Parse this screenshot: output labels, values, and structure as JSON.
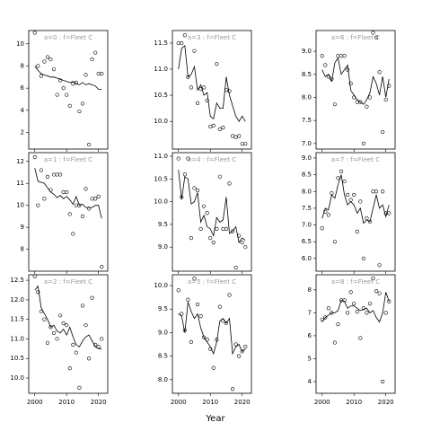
{
  "xlabel": "Year",
  "chart_data": [
    {
      "type": "scatter",
      "title": "a=0 : f=Fleet C",
      "x": [
        2000,
        2001,
        2002,
        2003,
        2004,
        2005,
        2006,
        2007,
        2008,
        2009,
        2010,
        2011,
        2012,
        2013,
        2014,
        2015,
        2016,
        2017,
        2018,
        2019,
        2020,
        2021
      ],
      "values": [
        11.0,
        8.0,
        7.1,
        8.4,
        8.8,
        8.6,
        7.7,
        5.4,
        6.7,
        6.0,
        5.4,
        4.4,
        6.4,
        6.5,
        3.9,
        4.6,
        7.2,
        0.9,
        8.6,
        9.2,
        7.3,
        7.3
      ],
      "line_values": [
        8.0,
        7.6,
        7.3,
        7.2,
        7.1,
        7.0,
        7.0,
        6.9,
        6.8,
        6.7,
        6.6,
        6.5,
        6.6,
        6.4,
        6.3,
        6.5,
        6.3,
        6.4,
        6.3,
        6.2,
        5.9,
        5.9
      ],
      "xlim": [
        1998.1,
        2022.9
      ],
      "xticks": [
        2000,
        2010,
        2020
      ],
      "ylim": [
        0.5,
        11.2
      ],
      "yticks": [
        2,
        4,
        6,
        8,
        10
      ]
    },
    {
      "type": "scatter",
      "title": "a=1 : f=Fleet C",
      "x": [
        2000,
        2001,
        2002,
        2003,
        2004,
        2005,
        2006,
        2007,
        2008,
        2009,
        2010,
        2011,
        2012,
        2013,
        2014,
        2015,
        2016,
        2017,
        2018,
        2019,
        2020,
        2021
      ],
      "values": [
        12.2,
        10.0,
        11.6,
        10.3,
        11.3,
        10.7,
        11.4,
        11.4,
        11.4,
        10.6,
        10.6,
        9.6,
        8.7,
        10.0,
        10.0,
        9.5,
        10.75,
        9.85,
        10.3,
        10.3,
        10.4,
        7.2
      ],
      "line_values": [
        11.7,
        11.1,
        11.05,
        11.0,
        10.8,
        10.6,
        10.5,
        10.35,
        10.45,
        10.3,
        10.4,
        10.25,
        10.05,
        10.4,
        10.0,
        10.05,
        9.9,
        9.9,
        9.9,
        10.0,
        10.0,
        9.4
      ],
      "xlim": [
        1998.1,
        2022.9
      ],
      "xticks": [
        2000,
        2010,
        2020
      ],
      "ylim": [
        7.0,
        12.4
      ],
      "yticks": [
        8,
        9,
        10,
        11,
        12
      ]
    },
    {
      "type": "scatter",
      "title": "a=2 : f=Fleet C",
      "x": [
        2000,
        2001,
        2002,
        2003,
        2004,
        2005,
        2006,
        2007,
        2008,
        2009,
        2010,
        2011,
        2012,
        2013,
        2014,
        2015,
        2016,
        2017,
        2018,
        2019,
        2020,
        2021
      ],
      "values": [
        12.6,
        12.2,
        11.7,
        11.5,
        10.9,
        11.3,
        11.15,
        11.0,
        11.6,
        11.4,
        11.35,
        10.25,
        10.85,
        10.65,
        9.75,
        11.85,
        11.35,
        10.5,
        12.05,
        10.85,
        10.8,
        11.0
      ],
      "line_values": [
        12.25,
        12.35,
        11.8,
        11.65,
        11.5,
        11.3,
        11.35,
        11.2,
        11.15,
        11.25,
        11.1,
        11.3,
        11.05,
        10.85,
        10.8,
        10.95,
        11.05,
        11.1,
        10.95,
        10.8,
        10.75,
        10.75
      ],
      "xlim": [
        1998.1,
        2022.9
      ],
      "xticks": [
        2000,
        2010,
        2020
      ],
      "ylim": [
        9.61,
        12.64
      ],
      "yticks": [
        {
          "value": 10,
          "label": "10.0"
        },
        10.5,
        {
          "value": 11,
          "label": "11.0"
        },
        11.5,
        {
          "value": 12,
          "label": "12.0"
        },
        12.5
      ]
    },
    {
      "type": "scatter",
      "title": "a=3 : f=Fleet C",
      "x": [
        2000,
        2001,
        2002,
        2003,
        2004,
        2005,
        2006,
        2007,
        2008,
        2009,
        2010,
        2011,
        2012,
        2013,
        2014,
        2015,
        2016,
        2017,
        2018,
        2019,
        2020,
        2021
      ],
      "values": [
        11.5,
        11.5,
        11.65,
        10.85,
        10.65,
        11.35,
        10.35,
        10.62,
        10.65,
        10.4,
        9.9,
        9.92,
        11.1,
        9.85,
        9.88,
        10.6,
        10.58,
        9.72,
        9.7,
        9.72,
        9.57,
        9.57
      ],
      "line_values": [
        11.0,
        11.4,
        11.45,
        10.85,
        10.9,
        11.05,
        10.6,
        10.7,
        10.5,
        10.55,
        10.1,
        10.05,
        10.35,
        10.25,
        10.25,
        10.85,
        10.5,
        10.3,
        10.1,
        10.0,
        10.1,
        10.0
      ],
      "xlim": [
        1998.1,
        2022.9
      ],
      "xticks": [
        2000,
        2010,
        2020
      ],
      "ylim": [
        9.47,
        11.74
      ],
      "yticks": [
        {
          "value": 10,
          "label": "10.0"
        },
        10.5,
        {
          "value": 11,
          "label": "11.0"
        },
        11.5
      ]
    },
    {
      "type": "scatter",
      "title": "a=4 : f=Fleet C",
      "x": [
        2000,
        2001,
        2002,
        2003,
        2004,
        2005,
        2006,
        2007,
        2008,
        2009,
        2010,
        2011,
        2012,
        2013,
        2014,
        2015,
        2016,
        2017,
        2018,
        2019,
        2020,
        2021
      ],
      "values": [
        10.95,
        10.1,
        10.6,
        10.95,
        9.2,
        10.3,
        10.25,
        9.4,
        9.9,
        9.75,
        9.2,
        9.1,
        9.4,
        10.55,
        9.4,
        9.4,
        10.4,
        9.35,
        8.55,
        9.25,
        9.1,
        9.0
      ],
      "line_values": [
        10.7,
        10.05,
        10.55,
        10.5,
        9.95,
        10.0,
        10.2,
        9.55,
        9.7,
        9.45,
        9.4,
        9.25,
        9.65,
        9.55,
        9.6,
        10.1,
        9.3,
        9.35,
        9.45,
        9.1,
        9.2,
        9.15
      ],
      "xlim": [
        1998.1,
        2022.9
      ],
      "xticks": [
        2000,
        2010,
        2020
      ],
      "ylim": [
        8.47,
        11.08
      ],
      "yticks": [
        {
          "value": 9,
          "label": "9.0"
        },
        9.5,
        {
          "value": 10,
          "label": "10.0"
        },
        10.5,
        {
          "value": 11,
          "label": "11.0"
        }
      ]
    },
    {
      "type": "scatter",
      "title": "a=5 : f=Fleet C",
      "x": [
        2000,
        2001,
        2002,
        2003,
        2004,
        2005,
        2006,
        2007,
        2008,
        2009,
        2010,
        2011,
        2012,
        2013,
        2014,
        2015,
        2016,
        2017,
        2018,
        2019,
        2020,
        2021
      ],
      "values": [
        9.9,
        9.4,
        9.05,
        9.7,
        8.8,
        10.15,
        9.6,
        9.35,
        8.9,
        8.85,
        8.65,
        8.25,
        8.85,
        9.55,
        9.25,
        9.2,
        9.8,
        7.8,
        8.75,
        8.5,
        8.6,
        8.7
      ],
      "line_values": [
        9.4,
        9.35,
        9.0,
        9.65,
        9.45,
        9.3,
        9.4,
        9.1,
        8.9,
        8.8,
        8.7,
        8.55,
        8.8,
        9.25,
        9.3,
        9.2,
        9.3,
        8.55,
        8.7,
        8.75,
        8.6,
        8.65
      ],
      "xlim": [
        1998.1,
        2022.9
      ],
      "xticks": [
        2000,
        2010,
        2020
      ],
      "ylim": [
        7.71,
        10.23
      ],
      "yticks": [
        {
          "value": 8,
          "label": "8.0"
        },
        8.5,
        {
          "value": 9,
          "label": "9.0"
        },
        9.5,
        {
          "value": 10,
          "label": "10.0"
        }
      ]
    },
    {
      "type": "scatter",
      "title": "a=6 : f=Fleet C",
      "x": [
        2000,
        2001,
        2002,
        2003,
        2004,
        2005,
        2006,
        2007,
        2008,
        2009,
        2010,
        2011,
        2012,
        2013,
        2014,
        2015,
        2016,
        2017,
        2018,
        2019,
        2020,
        2021
      ],
      "values": [
        8.9,
        8.7,
        8.45,
        8.4,
        7.85,
        8.9,
        8.9,
        8.9,
        8.6,
        8.3,
        8.0,
        7.9,
        7.9,
        7.0,
        7.8,
        8.0,
        9.4,
        9.3,
        8.55,
        7.25,
        7.95,
        8.25
      ],
      "line_values": [
        8.6,
        8.45,
        8.5,
        8.35,
        8.75,
        8.85,
        8.5,
        8.6,
        8.7,
        8.15,
        8.05,
        7.95,
        7.9,
        7.85,
        7.95,
        8.1,
        8.45,
        8.3,
        8.05,
        8.45,
        8.0,
        8.4
      ],
      "xlim": [
        1998.1,
        2022.9
      ],
      "xticks": [
        2000,
        2010,
        2020
      ],
      "ylim": [
        6.88,
        9.45
      ],
      "yticks": [
        {
          "value": 7,
          "label": "7.0"
        },
        7.5,
        {
          "value": 8,
          "label": "8.0"
        },
        8.5,
        {
          "value": 9,
          "label": "9.0"
        }
      ]
    },
    {
      "type": "scatter",
      "title": "a=7 : f=Fleet C",
      "x": [
        2000,
        2001,
        2002,
        2003,
        2004,
        2005,
        2006,
        2007,
        2008,
        2009,
        2010,
        2011,
        2012,
        2013,
        2014,
        2015,
        2016,
        2017,
        2018,
        2019,
        2020,
        2021
      ],
      "values": [
        6.9,
        7.4,
        7.3,
        7.95,
        6.5,
        8.4,
        8.6,
        8.3,
        7.9,
        7.75,
        7.9,
        6.8,
        7.7,
        6.0,
        7.2,
        7.1,
        8.0,
        8.0,
        5.8,
        8.0,
        7.35,
        7.35
      ],
      "line_values": [
        7.2,
        7.5,
        7.45,
        7.9,
        7.8,
        8.2,
        8.5,
        7.9,
        7.6,
        7.7,
        7.6,
        7.35,
        7.5,
        7.05,
        7.15,
        7.1,
        7.5,
        7.9,
        7.5,
        7.6,
        7.25,
        7.6
      ],
      "xlim": [
        1998.1,
        2022.9
      ],
      "xticks": [
        2000,
        2010,
        2020
      ],
      "ylim": [
        5.62,
        9.16
      ],
      "yticks": [
        {
          "value": 6,
          "label": "6.0"
        },
        6.5,
        {
          "value": 7,
          "label": "7.0"
        },
        7.5,
        {
          "value": 8,
          "label": "8.0"
        },
        8.5,
        {
          "value": 9,
          "label": "9.0"
        }
      ]
    },
    {
      "type": "scatter",
      "title": "a=8 : f=Fleet C",
      "x": [
        2000,
        2001,
        2002,
        2003,
        2004,
        2005,
        2006,
        2007,
        2008,
        2009,
        2010,
        2011,
        2012,
        2013,
        2014,
        2015,
        2016,
        2017,
        2018,
        2019,
        2020,
        2021
      ],
      "values": [
        6.7,
        6.8,
        7.2,
        7.0,
        5.7,
        6.5,
        7.55,
        7.55,
        7.0,
        7.9,
        7.4,
        7.05,
        5.9,
        7.2,
        7.0,
        7.4,
        8.5,
        7.95,
        7.85,
        4.0,
        7.0,
        7.5
      ],
      "line_values": [
        6.6,
        6.8,
        6.9,
        7.0,
        7.0,
        7.1,
        7.55,
        7.5,
        7.2,
        7.3,
        7.3,
        7.2,
        7.1,
        7.15,
        7.2,
        7.0,
        7.1,
        6.8,
        6.6,
        7.0,
        7.9,
        7.5
      ],
      "xlim": [
        1998.1,
        2022.9
      ],
      "xticks": [
        2000,
        2010,
        2020
      ],
      "ylim": [
        3.49,
        8.66
      ],
      "yticks": [
        4,
        5,
        6,
        7,
        8
      ]
    }
  ]
}
